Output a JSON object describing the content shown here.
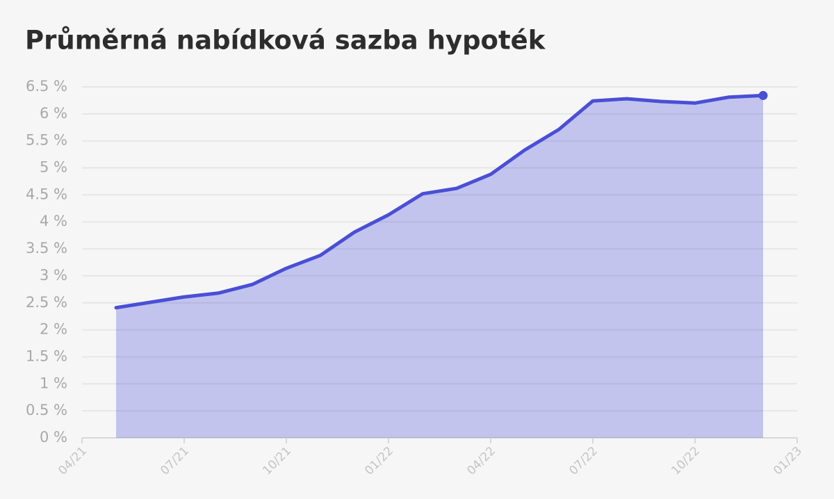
{
  "chart_data": {
    "type": "area",
    "title": "Průměrná nabídková sazba hypoték",
    "x": [
      "2021-05",
      "2021-06",
      "2021-07",
      "2021-08",
      "2021-09",
      "2021-10",
      "2021-11",
      "2021-12",
      "2022-01",
      "2022-02",
      "2022-03",
      "2022-04",
      "2022-05",
      "2022-06",
      "2022-07",
      "2022-08",
      "2022-09",
      "2022-10",
      "2022-11",
      "2022-12"
    ],
    "series": [
      {
        "color": "#4a4fd6",
        "values": [
          2.41,
          2.51,
          2.61,
          2.68,
          2.84,
          3.14,
          3.38,
          3.81,
          4.13,
          4.52,
          4.62,
          4.88,
          5.33,
          5.71,
          6.24,
          6.28,
          6.23,
          6.2,
          6.31,
          6.34
        ]
      }
    ],
    "xlim": [
      "2021-04",
      "2023-01"
    ],
    "xticks": [
      {
        "value": "2021-04",
        "label": "04/21"
      },
      {
        "value": "2021-07",
        "label": "07/21"
      },
      {
        "value": "2021-10",
        "label": "10/21"
      },
      {
        "value": "2022-01",
        "label": "01/22"
      },
      {
        "value": "2022-04",
        "label": "04/22"
      },
      {
        "value": "2022-07",
        "label": "07/22"
      },
      {
        "value": "2022-10",
        "label": "10/22"
      },
      {
        "value": "2023-01",
        "label": "01/23"
      }
    ],
    "ylim": [
      0,
      6.5
    ],
    "yticks": [
      {
        "value": 0,
        "label": "0 %"
      },
      {
        "value": 0.5,
        "label": "0.5 %"
      },
      {
        "value": 1,
        "label": "1 %"
      },
      {
        "value": 1.5,
        "label": "1.5 %"
      },
      {
        "value": 2,
        "label": "2 %"
      },
      {
        "value": 2.5,
        "label": "2.5 %"
      },
      {
        "value": 3,
        "label": "3 %"
      },
      {
        "value": 3.5,
        "label": "3.5 %"
      },
      {
        "value": 4,
        "label": "4 %"
      },
      {
        "value": 4.5,
        "label": "4.5 %"
      },
      {
        "value": 5,
        "label": "5 %"
      },
      {
        "value": 5.5,
        "label": "5.5 %"
      },
      {
        "value": 6,
        "label": "6 %"
      },
      {
        "value": 6.5,
        "label": "6.5 %"
      }
    ],
    "grid": true
  }
}
